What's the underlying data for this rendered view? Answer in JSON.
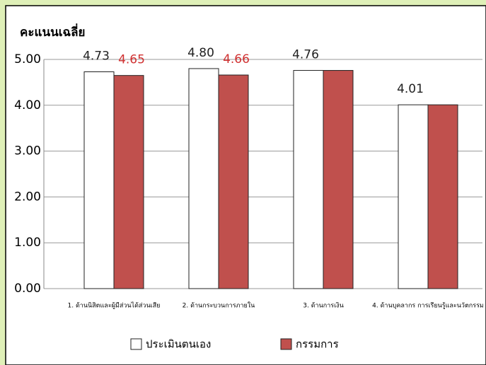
{
  "chart_data": {
    "type": "bar",
    "title": "คะแนนเฉลี่ย",
    "categories": [
      "1. ด้านนิสิตและผู้มีส่วนได้ส่วนเสีย",
      "2. ด้านกระบวนการภายใน",
      "3. ด้านการเงิน",
      "4. ด้านบุคลากร การเรียนรู้และนวัตกรรม"
    ],
    "series": [
      {
        "name": "ประเมินตนเอง",
        "color": "#ffffff",
        "values": [
          4.73,
          4.8,
          4.76,
          4.01
        ],
        "value_labels": [
          "4.73",
          "4.80",
          "4.76",
          "4.01"
        ],
        "label_color": "#222222"
      },
      {
        "name": "กรรมการ",
        "color": "#c0504d",
        "values": [
          4.65,
          4.66,
          4.76,
          4.01
        ],
        "value_labels": [
          "4.65",
          "4.66",
          null,
          null
        ],
        "label_color": "#d03030"
      }
    ],
    "ylim": [
      0,
      5
    ],
    "yticks": [
      {
        "value": 0,
        "label": "0.00"
      },
      {
        "value": 1,
        "label": "1.00"
      },
      {
        "value": 2,
        "label": "2.00"
      },
      {
        "value": 3,
        "label": "3.00"
      },
      {
        "value": 4,
        "label": "4.00"
      },
      {
        "value": 5,
        "label": "5.00"
      }
    ],
    "grid": true,
    "legend": "bottom"
  }
}
